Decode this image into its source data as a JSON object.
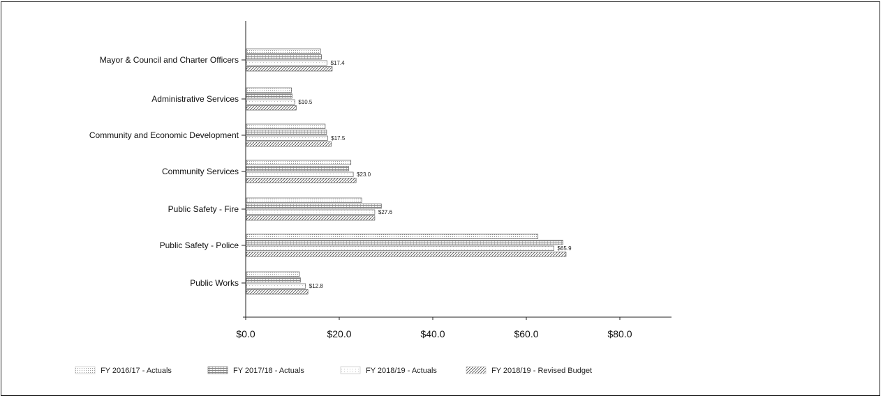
{
  "chart_data": {
    "type": "bar",
    "orientation": "horizontal",
    "categories": [
      "Mayor & Council and Charter Officers",
      "Administrative Services",
      "Community and Economic Development",
      "Community Services",
      "Public Safety - Fire",
      "Public Safety - Police",
      "Public Works"
    ],
    "series": [
      {
        "name": "FY 2016/17 - Actuals",
        "values": [
          16.0,
          9.8,
          17.0,
          22.5,
          24.8,
          62.5,
          11.5
        ],
        "pattern": "dots"
      },
      {
        "name": "FY 2017/18 - Actuals",
        "values": [
          16.2,
          9.9,
          17.3,
          22.0,
          29.0,
          67.8,
          11.7
        ],
        "pattern": "grid"
      },
      {
        "name": "FY 2018/19 - Actuals",
        "values": [
          17.4,
          10.5,
          17.5,
          23.0,
          27.6,
          65.9,
          12.8
        ],
        "pattern": "light"
      },
      {
        "name": "FY 2018/19 - Revised Budget",
        "values": [
          18.5,
          10.8,
          18.3,
          23.6,
          27.6,
          68.5,
          13.3
        ],
        "pattern": "hatch"
      }
    ],
    "data_labels": [
      "$17.4",
      "$10.5",
      "$17.5",
      "$23.0",
      "$27.6",
      "$65.9",
      "$12.8"
    ],
    "data_label_series": 2,
    "x_ticks": [
      {
        "value": 0,
        "label": "$0.0"
      },
      {
        "value": 20,
        "label": "$20.0"
      },
      {
        "value": 40,
        "label": "$40.0"
      },
      {
        "value": 60,
        "label": "$60.0"
      },
      {
        "value": 80,
        "label": "$80.0"
      }
    ],
    "xlim": [
      0,
      90
    ],
    "title": "",
    "xlabel": "",
    "ylabel": "",
    "grid": false,
    "legend_position": "bottom",
    "colors": {
      "bar_fill": "#dcdcdc",
      "bar_stroke": "#333333",
      "axis": "#222222"
    }
  }
}
